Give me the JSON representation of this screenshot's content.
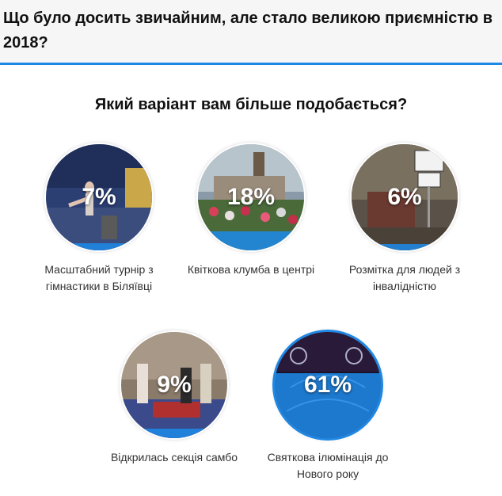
{
  "header": {
    "title": "Що було досить звичайним, але стало великою приємністю в 2018?"
  },
  "question": "Який варіант вам більше подобається?",
  "options": [
    {
      "percent": "7%",
      "share": 0.07,
      "label": "Масштабний турнір з гімнастики в Біляївці"
    },
    {
      "percent": "18%",
      "share": 0.18,
      "label": "Квіткова клумба в центрі"
    },
    {
      "percent": "6%",
      "share": 0.06,
      "label": "Розмітка для людей з інвалідністю"
    },
    {
      "percent": "9%",
      "share": 0.09,
      "label": "Відкрилась секція самбо"
    },
    {
      "percent": "61%",
      "share": 0.61,
      "label": "Святкова ілюмінація до Нового року"
    }
  ],
  "colors": {
    "accent": "#1e88e5"
  }
}
